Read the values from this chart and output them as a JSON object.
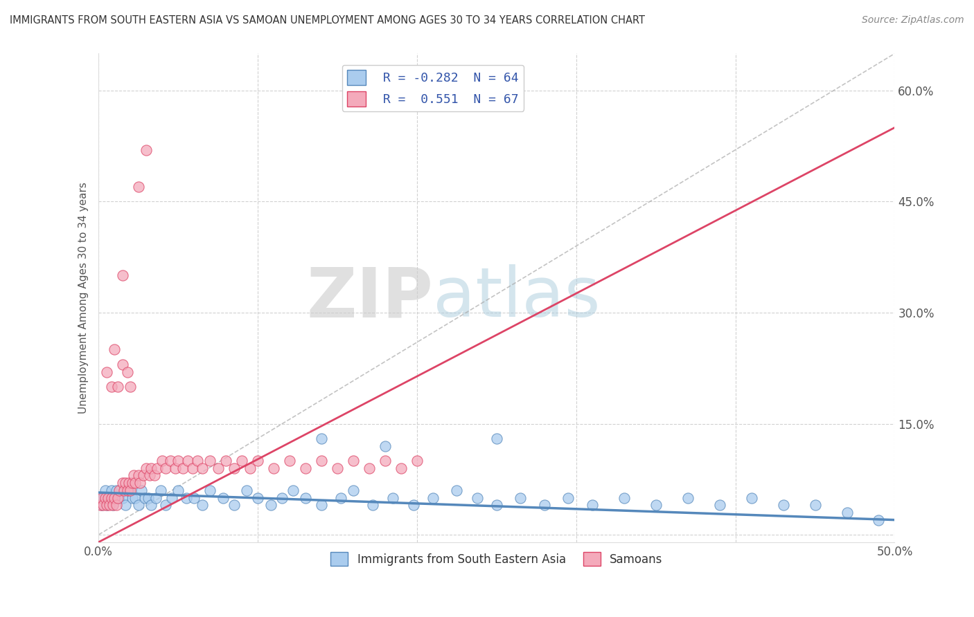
{
  "title": "IMMIGRANTS FROM SOUTH EASTERN ASIA VS SAMOAN UNEMPLOYMENT AMONG AGES 30 TO 34 YEARS CORRELATION CHART",
  "source": "Source: ZipAtlas.com",
  "ylabel": "Unemployment Among Ages 30 to 34 years",
  "xlim": [
    0.0,
    0.5
  ],
  "ylim": [
    -0.01,
    0.65
  ],
  "xticks": [
    0.0,
    0.1,
    0.2,
    0.3,
    0.4,
    0.5
  ],
  "yticks": [
    0.0,
    0.15,
    0.3,
    0.45,
    0.6
  ],
  "ytick_labels": [
    "",
    "15.0%",
    "30.0%",
    "45.0%",
    "60.0%"
  ],
  "xtick_labels_bottom": [
    "0.0%",
    "",
    "",
    "",
    "",
    "50.0%"
  ],
  "legend_labels": [
    "Immigrants from South Eastern Asia",
    "Samoans"
  ],
  "series1_color": "#aaccee",
  "series2_color": "#f4aabb",
  "trendline1_color": "#5588bb",
  "trendline2_color": "#dd4466",
  "r1": -0.282,
  "n1": 64,
  "r2": 0.551,
  "n2": 67,
  "watermark_zip": "ZIP",
  "watermark_atlas": "atlas",
  "background_color": "#ffffff",
  "grid_color": "#cccccc",
  "blue_x": [
    0.002,
    0.003,
    0.004,
    0.005,
    0.006,
    0.007,
    0.008,
    0.009,
    0.01,
    0.011,
    0.013,
    0.015,
    0.017,
    0.019,
    0.021,
    0.023,
    0.025,
    0.027,
    0.029,
    0.031,
    0.033,
    0.036,
    0.039,
    0.042,
    0.046,
    0.05,
    0.055,
    0.06,
    0.065,
    0.07,
    0.078,
    0.085,
    0.093,
    0.1,
    0.108,
    0.115,
    0.122,
    0.13,
    0.14,
    0.152,
    0.16,
    0.172,
    0.185,
    0.198,
    0.21,
    0.225,
    0.238,
    0.25,
    0.265,
    0.28,
    0.295,
    0.31,
    0.33,
    0.35,
    0.37,
    0.39,
    0.41,
    0.43,
    0.45,
    0.47,
    0.49,
    0.25,
    0.18,
    0.14
  ],
  "blue_y": [
    0.04,
    0.05,
    0.06,
    0.04,
    0.05,
    0.05,
    0.06,
    0.04,
    0.05,
    0.06,
    0.05,
    0.05,
    0.04,
    0.06,
    0.05,
    0.05,
    0.04,
    0.06,
    0.05,
    0.05,
    0.04,
    0.05,
    0.06,
    0.04,
    0.05,
    0.06,
    0.05,
    0.05,
    0.04,
    0.06,
    0.05,
    0.04,
    0.06,
    0.05,
    0.04,
    0.05,
    0.06,
    0.05,
    0.04,
    0.05,
    0.06,
    0.04,
    0.05,
    0.04,
    0.05,
    0.06,
    0.05,
    0.04,
    0.05,
    0.04,
    0.05,
    0.04,
    0.05,
    0.04,
    0.05,
    0.04,
    0.05,
    0.04,
    0.04,
    0.03,
    0.02,
    0.13,
    0.12,
    0.13
  ],
  "pink_x": [
    0.001,
    0.002,
    0.003,
    0.004,
    0.005,
    0.006,
    0.007,
    0.008,
    0.009,
    0.01,
    0.011,
    0.012,
    0.013,
    0.015,
    0.016,
    0.017,
    0.018,
    0.019,
    0.02,
    0.021,
    0.022,
    0.023,
    0.025,
    0.026,
    0.028,
    0.03,
    0.032,
    0.033,
    0.035,
    0.037,
    0.04,
    0.042,
    0.045,
    0.048,
    0.05,
    0.053,
    0.056,
    0.059,
    0.062,
    0.065,
    0.07,
    0.075,
    0.08,
    0.085,
    0.09,
    0.095,
    0.1,
    0.11,
    0.12,
    0.13,
    0.14,
    0.15,
    0.16,
    0.17,
    0.18,
    0.19,
    0.2,
    0.005,
    0.008,
    0.01,
    0.012,
    0.015,
    0.018,
    0.02,
    0.015,
    0.025,
    0.03
  ],
  "pink_y": [
    0.04,
    0.05,
    0.04,
    0.05,
    0.04,
    0.05,
    0.04,
    0.05,
    0.04,
    0.05,
    0.04,
    0.05,
    0.06,
    0.07,
    0.06,
    0.07,
    0.06,
    0.07,
    0.06,
    0.07,
    0.08,
    0.07,
    0.08,
    0.07,
    0.08,
    0.09,
    0.08,
    0.09,
    0.08,
    0.09,
    0.1,
    0.09,
    0.1,
    0.09,
    0.1,
    0.09,
    0.1,
    0.09,
    0.1,
    0.09,
    0.1,
    0.09,
    0.1,
    0.09,
    0.1,
    0.09,
    0.1,
    0.09,
    0.1,
    0.09,
    0.1,
    0.09,
    0.1,
    0.09,
    0.1,
    0.09,
    0.1,
    0.22,
    0.2,
    0.25,
    0.2,
    0.23,
    0.22,
    0.2,
    0.35,
    0.47,
    0.52
  ]
}
